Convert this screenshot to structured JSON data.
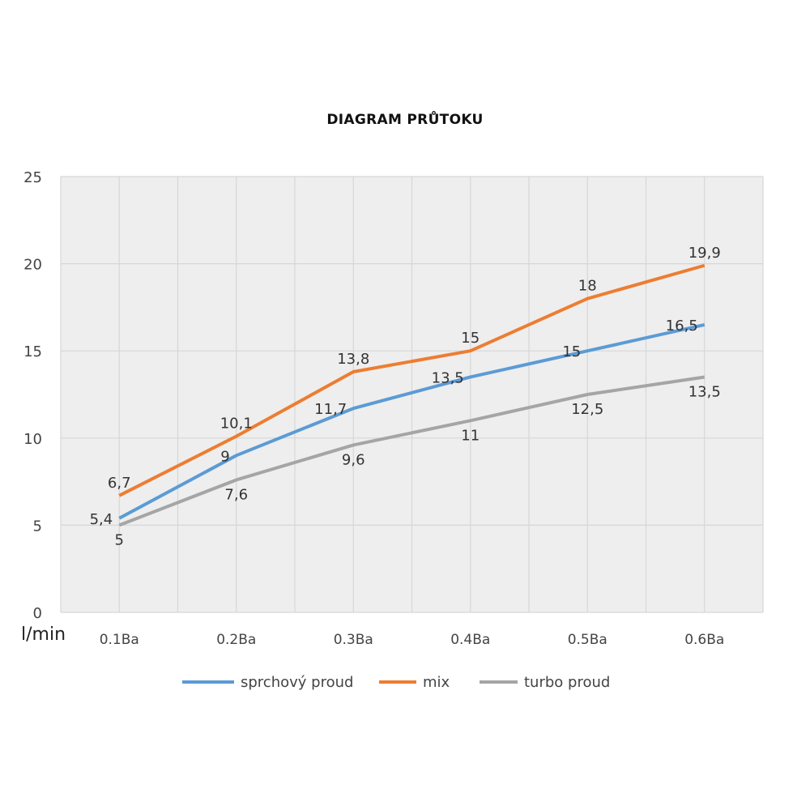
{
  "chart_data": {
    "type": "line",
    "title": "DIAGRAM PRŮTOKU",
    "xlabel": "",
    "ylabel": "l/min",
    "categories": [
      "0.1Ba",
      "0.2Ba",
      "0.3Ba",
      "0.4Ba",
      "0.5Ba",
      "0.6Ba"
    ],
    "ylim": [
      0,
      25
    ],
    "yticks": [
      0,
      5,
      10,
      15,
      20,
      25
    ],
    "grid": true,
    "legend": "bottom",
    "series": [
      {
        "name": "sprchový proud",
        "color": "#5b9bd5",
        "values": [
          5.4,
          9,
          11.7,
          13.5,
          15,
          16.5
        ],
        "labels": [
          "5,4",
          "9",
          "11,7",
          "13,5",
          "15",
          "16,5"
        ]
      },
      {
        "name": "mix",
        "color": "#ed7d31",
        "values": [
          6.7,
          10.1,
          13.8,
          15,
          18,
          19.9
        ],
        "labels": [
          "6,7",
          "10,1",
          "13,8",
          "15",
          "18",
          "19,9"
        ]
      },
      {
        "name": "turbo proud",
        "color": "#a5a5a5",
        "values": [
          5,
          7.6,
          9.6,
          11,
          12.5,
          13.5
        ],
        "labels": [
          "5",
          "7,6",
          "9,6",
          "11",
          "12,5",
          "13,5"
        ]
      }
    ]
  }
}
